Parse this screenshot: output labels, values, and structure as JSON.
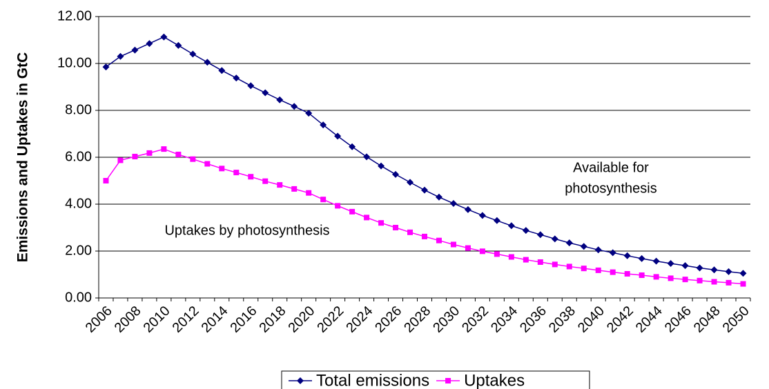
{
  "chart_data": {
    "type": "line",
    "y_label": "Emissions and Uptakes in GtC",
    "categories": [
      "2006",
      null,
      "2008",
      null,
      "2010",
      null,
      "2012",
      null,
      "2014",
      null,
      "2016",
      null,
      "2018",
      null,
      "2020",
      null,
      "2022",
      null,
      "2024",
      null,
      "2026",
      null,
      "2028",
      null,
      "2030",
      null,
      "2032",
      null,
      "2034",
      null,
      "2036",
      null,
      "2038",
      null,
      "2040",
      null,
      "2042",
      null,
      "2044",
      null,
      "2046",
      null,
      "2048",
      null,
      "2050"
    ],
    "series": [
      {
        "name": "Total emissions",
        "color": "#000080",
        "marker": "diamond",
        "values": [
          9.85,
          10.3,
          10.57,
          10.85,
          11.13,
          10.77,
          10.4,
          10.05,
          9.7,
          9.38,
          9.05,
          8.75,
          8.45,
          8.17,
          7.88,
          7.38,
          6.9,
          6.45,
          6.02,
          5.63,
          5.27,
          4.93,
          4.6,
          4.3,
          4.03,
          3.77,
          3.52,
          3.3,
          3.08,
          2.88,
          2.7,
          2.52,
          2.35,
          2.2,
          2.05,
          1.93,
          1.8,
          1.68,
          1.57,
          1.47,
          1.38,
          1.28,
          1.2,
          1.12,
          1.05
        ]
      },
      {
        "name": "Uptakes",
        "color": "#ff00ff",
        "marker": "square",
        "values": [
          5.0,
          5.87,
          6.03,
          6.18,
          6.35,
          6.12,
          5.92,
          5.72,
          5.52,
          5.35,
          5.17,
          4.98,
          4.82,
          4.65,
          4.48,
          4.2,
          3.93,
          3.68,
          3.43,
          3.2,
          3.0,
          2.8,
          2.62,
          2.45,
          2.28,
          2.13,
          1.99,
          1.87,
          1.75,
          1.63,
          1.53,
          1.43,
          1.34,
          1.26,
          1.18,
          1.1,
          1.03,
          0.97,
          0.9,
          0.84,
          0.79,
          0.74,
          0.69,
          0.65,
          0.6
        ]
      }
    ],
    "ylim": [
      0,
      12
    ],
    "yticks": [
      {
        "value": 0,
        "label": "0.00"
      },
      {
        "value": 2,
        "label": "2.00"
      },
      {
        "value": 4,
        "label": "4.00"
      },
      {
        "value": 6,
        "label": "6.00"
      },
      {
        "value": 8,
        "label": "8.00"
      },
      {
        "value": 10,
        "label": "10.00"
      },
      {
        "value": 12,
        "label": "12.00"
      }
    ],
    "grid": true,
    "legend": "bottom",
    "annotations": [
      [
        "Available for",
        "photosynthesis"
      ],
      [
        "Uptakes by photosynthesis"
      ]
    ]
  }
}
